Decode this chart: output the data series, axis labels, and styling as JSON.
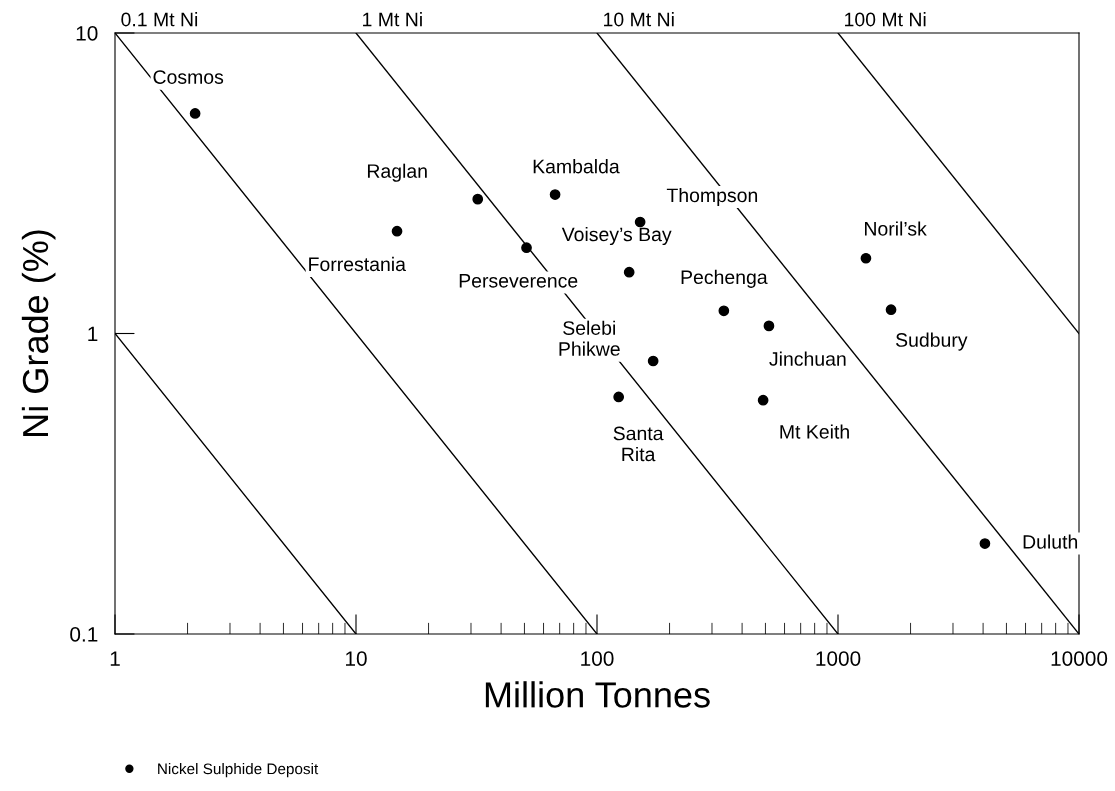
{
  "chart_data": {
    "type": "scatter",
    "xlabel": "Million Tonnes",
    "ylabel": "Ni Grade (%)",
    "log": "xy",
    "xlim": [
      1,
      10000
    ],
    "ylim": [
      0.1,
      10
    ],
    "xticks": [
      1,
      10,
      100,
      1000,
      10000
    ],
    "yticks": [
      0.1,
      1,
      10
    ],
    "grid": false,
    "legend": "bottom left",
    "marker": "circle",
    "series": [
      {
        "name": "Nickel Sulphide Deposit",
        "color": "#000000",
        "x": [
          2.15,
          32,
          14.8,
          67,
          51,
          151,
          136,
          336,
          517,
          171,
          123,
          489,
          1306,
          1660,
          4070
        ],
        "values": [
          5.4,
          2.8,
          2.19,
          2.9,
          1.93,
          2.35,
          1.6,
          1.19,
          1.06,
          0.81,
          0.615,
          0.6,
          1.78,
          1.2,
          0.2
        ]
      },
      {
        "color": "#000000",
        "type": "line",
        "marker": "none",
        "x": [
          1,
          10
        ],
        "values": [
          1,
          0.1
        ]
      },
      {
        "color": "#000000",
        "type": "line",
        "marker": "none",
        "x": [
          1,
          100
        ],
        "values": [
          10,
          0.1
        ]
      },
      {
        "color": "#000000",
        "type": "line",
        "marker": "none",
        "x": [
          10,
          1000
        ],
        "values": [
          10,
          0.1
        ]
      },
      {
        "color": "#000000",
        "type": "line",
        "marker": "none",
        "x": [
          100,
          10000
        ],
        "values": [
          10,
          0.1
        ]
      },
      {
        "color": "#000000",
        "type": "line",
        "marker": "none",
        "x": [
          1000,
          10000
        ],
        "values": [
          10,
          1
        ]
      }
    ],
    "annotations": [
      {
        "text": "0.1 Mt Ni",
        "x": 1,
        "y": 10
      },
      {
        "text": "1 Mt Ni",
        "x": 10,
        "y": 10
      },
      {
        "text": "10 Mt Ni",
        "x": 100,
        "y": 10
      },
      {
        "text": "100 Mt Ni",
        "x": 1000,
        "y": 10
      },
      {
        "text": "Cosmos",
        "x": 2.15,
        "y": 5.4
      },
      {
        "text": "Raglan",
        "x": 32,
        "y": 2.8
      },
      {
        "text": "Forrestania",
        "x": 14.8,
        "y": 2.19
      },
      {
        "text": "Kambalda",
        "x": 67,
        "y": 2.9
      },
      {
        "text": "Perseverence",
        "x": 51,
        "y": 1.93
      },
      {
        "text": "Thompson",
        "x": 151,
        "y": 2.35
      },
      {
        "text": "Voisey’s Bay",
        "x": 136,
        "y": 1.6
      },
      {
        "text": "Pechenga",
        "x": 336,
        "y": 1.19
      },
      {
        "text": "Jinchuan",
        "x": 517,
        "y": 1.06
      },
      {
        "text": "Selebi\nPhikwe",
        "x": 171,
        "y": 0.81
      },
      {
        "text": "Santa\nRita",
        "x": 123,
        "y": 0.615
      },
      {
        "text": "Mt Keith",
        "x": 489,
        "y": 0.6
      },
      {
        "text": "Noril’sk",
        "x": 1306,
        "y": 1.78
      },
      {
        "text": "Sudbury",
        "x": 1660,
        "y": 1.2
      },
      {
        "text": "Duluth",
        "x": 4070,
        "y": 0.2
      }
    ]
  }
}
